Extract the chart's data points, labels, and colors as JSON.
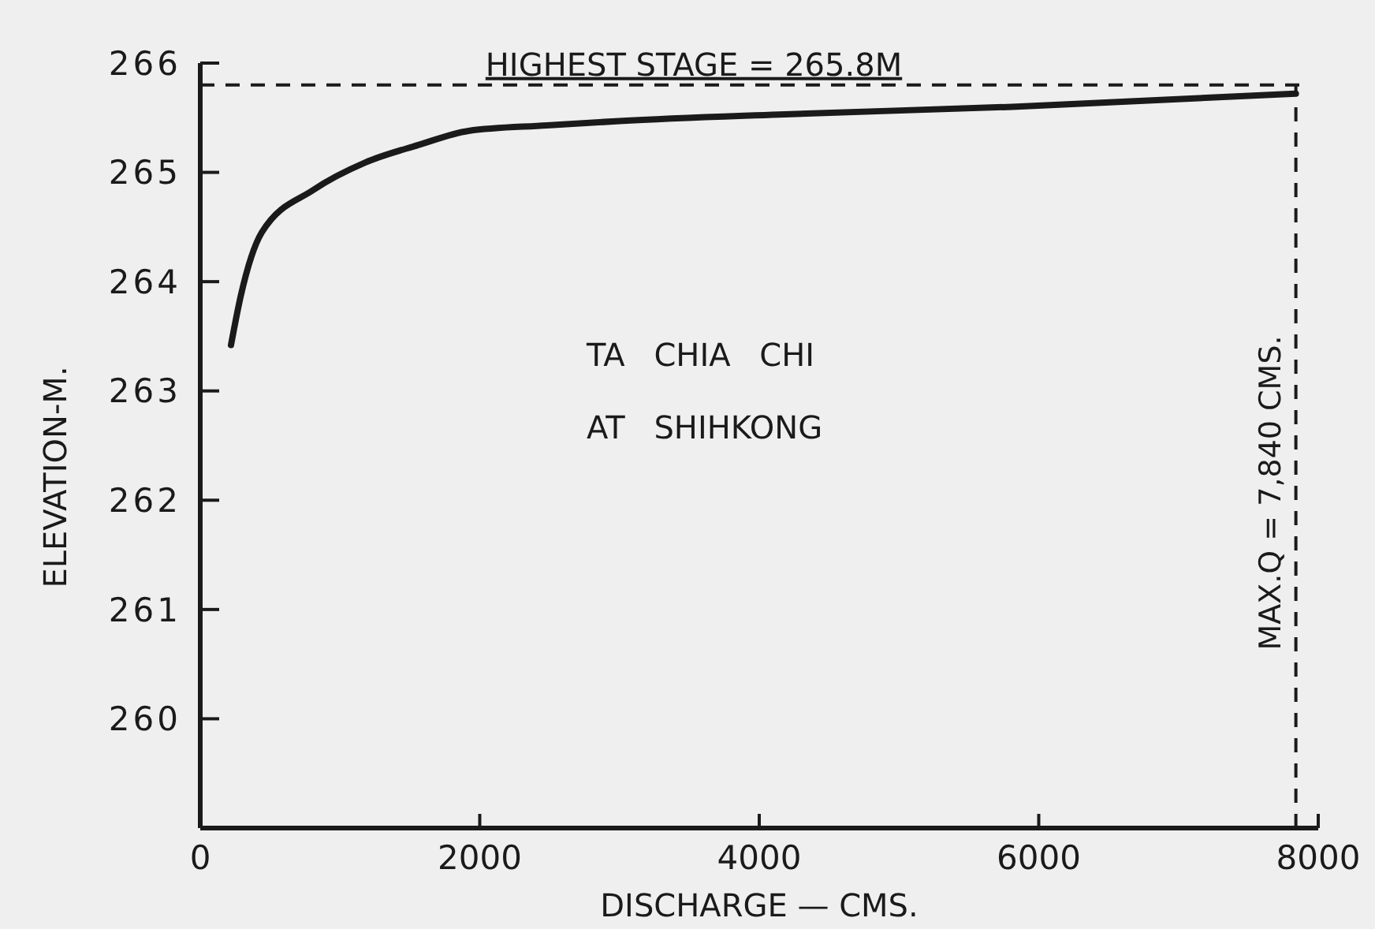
{
  "chart_data": {
    "type": "line",
    "xlabel": "DISCHARGE — CMS.",
    "ylabel": "ELEVATION-M.",
    "x": [
      220,
      290,
      440,
      810,
      1180,
      1560,
      1920,
      2480,
      3000,
      4140,
      5810,
      7840
    ],
    "series": [
      {
        "color": "#1a1a1a",
        "values": [
          263.42,
          263.87,
          264.45,
          264.84,
          265.09,
          265.25,
          265.38,
          265.43,
          265.47,
          265.53,
          265.6,
          265.72
        ]
      }
    ],
    "xlim": [
      0,
      8000
    ],
    "xticks": [
      0,
      2000,
      4000,
      6000,
      8000
    ],
    "ylim": [
      259,
      266
    ],
    "yticks": [
      260,
      261,
      262,
      263,
      264,
      265,
      266
    ],
    "ref_lines": [
      {
        "axis": "y",
        "value": 265.8,
        "label": "HIGHEST STAGE = 265.8M",
        "line_style": "dashed",
        "color": "#1a1a1a"
      },
      {
        "axis": "x",
        "value": 7840,
        "label": "MAX.Q = 7,840 CMS.",
        "line_style": "dashed",
        "color": "#1a1a1a"
      }
    ],
    "annotations": [
      "TA CHIA CHI",
      "AT SHIHKONG"
    ],
    "grid": false,
    "marker": "none",
    "line_style": "solid"
  }
}
